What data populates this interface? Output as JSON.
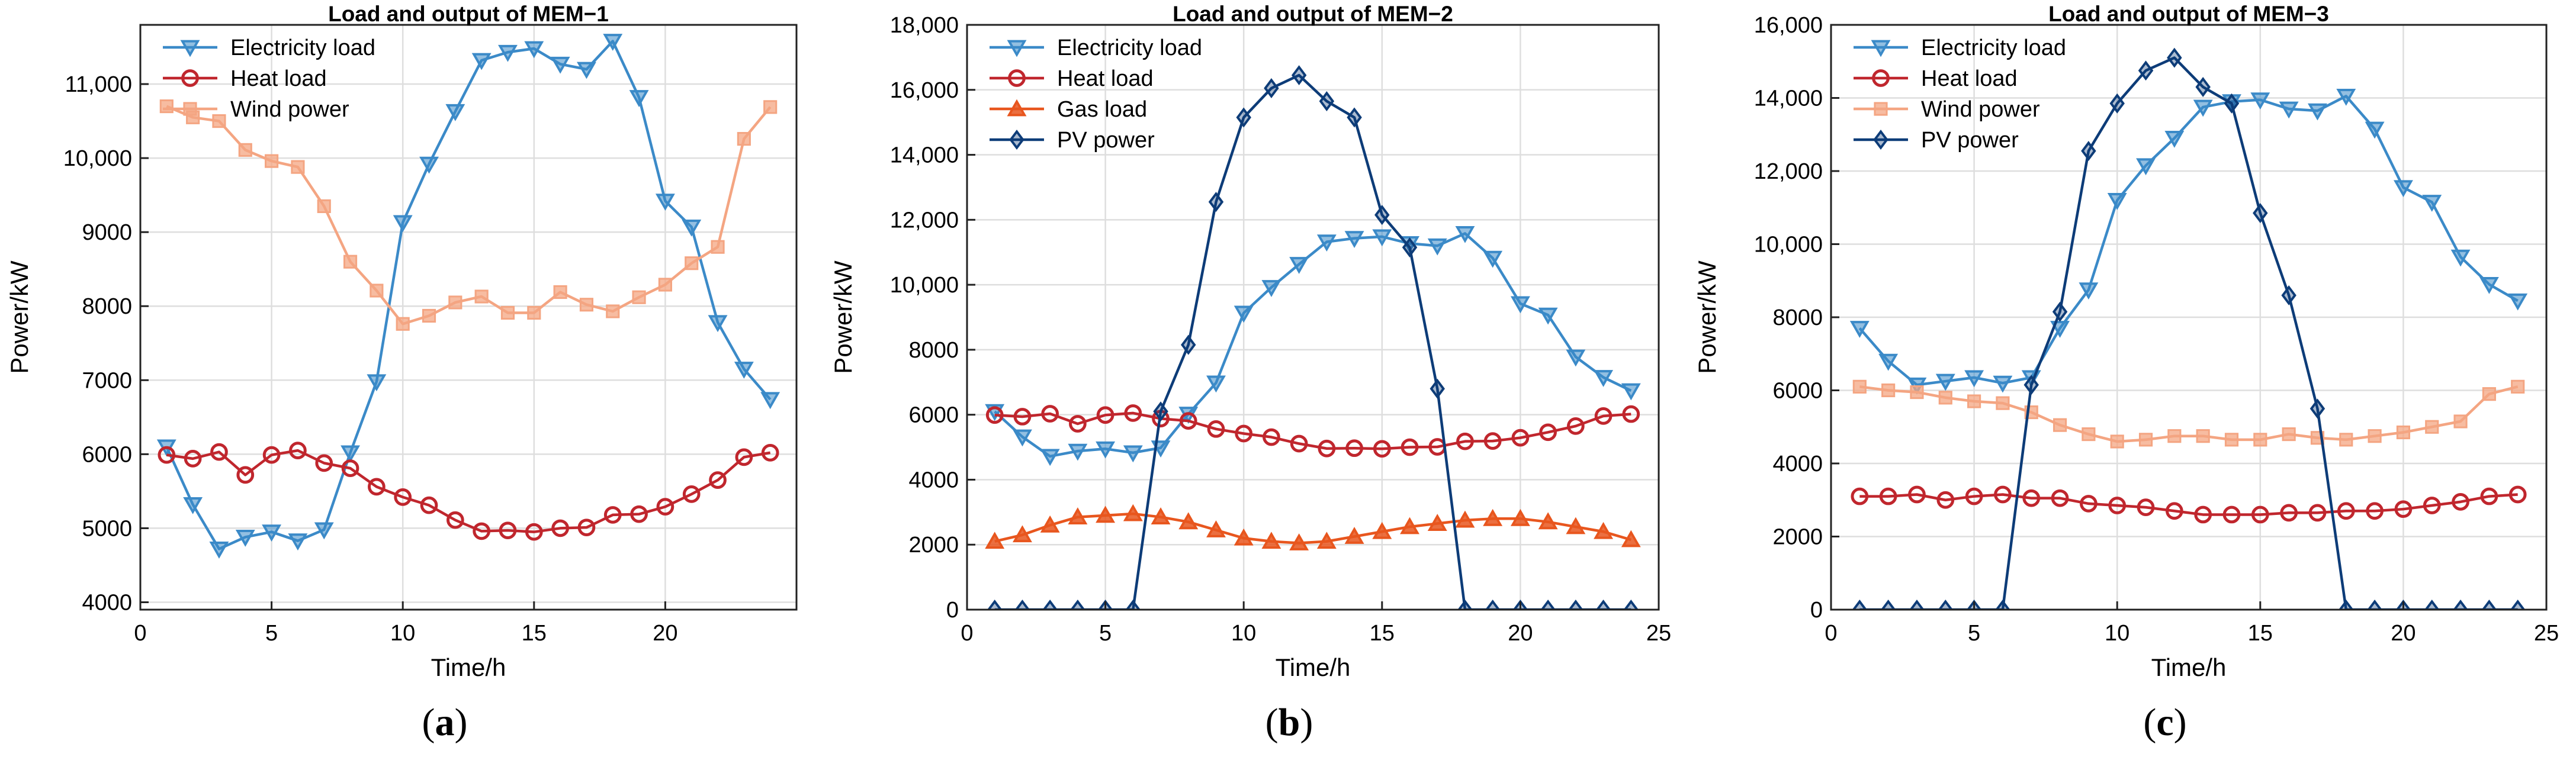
{
  "chart_data": [
    {
      "type": "line",
      "title": "Load and output of MEM−1",
      "xlabel": "Time/h",
      "ylabel": "Power/kW",
      "xlim": [
        0,
        25
      ],
      "ylim": [
        3900,
        11800
      ],
      "xticks": [
        0,
        5,
        10,
        15,
        20
      ],
      "xtick_labels": [
        "0",
        "5",
        "10",
        "15",
        "20"
      ],
      "yticks": [
        4000,
        5000,
        6000,
        7000,
        8000,
        9000,
        10000,
        11000
      ],
      "ytick_labels": [
        "4000",
        "5000",
        "6000",
        "7000",
        "8000",
        "9000",
        "10,000",
        "11,000"
      ],
      "grid": true,
      "legend": "top-left",
      "panel_label": {
        "open": "(",
        "letter": "a",
        "close": ")"
      },
      "x": [
        1,
        2,
        3,
        4,
        5,
        6,
        7,
        8,
        9,
        10,
        11,
        12,
        13,
        14,
        15,
        16,
        17,
        18,
        19,
        20,
        21,
        22,
        23,
        24
      ],
      "series": [
        {
          "name": "Electricity load",
          "color": "#3b8ac8",
          "marker": "triangle-down",
          "values": [
            6100,
            5320,
            4720,
            4880,
            4950,
            4830,
            4980,
            6020,
            6980,
            9130,
            9920,
            10630,
            11320,
            11430,
            11480,
            11270,
            11200,
            11580,
            10820,
            9420,
            9070,
            7780,
            7150,
            6740
          ]
        },
        {
          "name": "Heat load",
          "color": "#c0262d",
          "marker": "circle",
          "values": [
            5990,
            5940,
            6030,
            5720,
            5990,
            6050,
            5880,
            5810,
            5560,
            5420,
            5310,
            5110,
            4960,
            4970,
            4950,
            5000,
            5010,
            5180,
            5190,
            5290,
            5460,
            5650,
            5960,
            6020
          ]
        },
        {
          "name": "Wind power",
          "color": "#f4a582",
          "marker": "square",
          "values": [
            10700,
            10550,
            10500,
            10110,
            9960,
            9880,
            9350,
            8600,
            8210,
            7760,
            7870,
            8050,
            8130,
            7910,
            7910,
            8190,
            8020,
            7930,
            8120,
            8290,
            8580,
            8800,
            10260,
            10690
          ]
        }
      ]
    },
    {
      "type": "line",
      "title": "Load and output of MEM−2",
      "xlabel": "Time/h",
      "ylabel": "Power/kW",
      "xlim": [
        0,
        25
      ],
      "ylim": [
        0,
        18000
      ],
      "xticks": [
        0,
        5,
        10,
        15,
        20,
        25
      ],
      "xtick_labels": [
        "0",
        "5",
        "10",
        "15",
        "20",
        "25"
      ],
      "yticks": [
        0,
        2000,
        4000,
        6000,
        8000,
        10000,
        12000,
        14000,
        16000,
        18000
      ],
      "ytick_labels": [
        "0",
        "2000",
        "4000",
        "6000",
        "8000",
        "10,000",
        "12,000",
        "14,000",
        "16,000",
        "18,000"
      ],
      "grid": true,
      "legend": "top-left",
      "panel_label": {
        "open": "(",
        "letter": "b",
        "close": ")"
      },
      "x": [
        1,
        2,
        3,
        4,
        5,
        6,
        7,
        8,
        9,
        10,
        11,
        12,
        13,
        14,
        15,
        16,
        17,
        18,
        19,
        20,
        21,
        22,
        23,
        24
      ],
      "series": [
        {
          "name": "Electricity load",
          "color": "#3b8ac8",
          "marker": "triangle-down",
          "values": [
            6100,
            5320,
            4720,
            4880,
            4950,
            4830,
            4980,
            6020,
            6980,
            9130,
            9920,
            10630,
            11320,
            11430,
            11480,
            11270,
            11200,
            11580,
            10820,
            9420,
            9070,
            7780,
            7150,
            6740
          ]
        },
        {
          "name": "Heat load",
          "color": "#c0262d",
          "marker": "circle",
          "values": [
            5990,
            5940,
            6030,
            5720,
            5990,
            6050,
            5880,
            5810,
            5560,
            5420,
            5310,
            5110,
            4960,
            4970,
            4950,
            5000,
            5010,
            5180,
            5190,
            5290,
            5460,
            5650,
            5960,
            6020
          ]
        },
        {
          "name": "Gas load",
          "color": "#e8561e",
          "marker": "triangle-up",
          "values": [
            2100,
            2300,
            2600,
            2850,
            2900,
            2950,
            2850,
            2700,
            2450,
            2200,
            2100,
            2050,
            2100,
            2250,
            2400,
            2550,
            2650,
            2750,
            2800,
            2800,
            2700,
            2550,
            2400,
            2150
          ]
        },
        {
          "name": "PV power",
          "color": "#0d3c78",
          "marker": "diamond",
          "values": [
            0,
            0,
            0,
            0,
            0,
            0,
            6100,
            8150,
            12550,
            15150,
            16050,
            16450,
            15650,
            15150,
            12150,
            11150,
            6800,
            0,
            0,
            0,
            0,
            0,
            0,
            0
          ]
        }
      ]
    },
    {
      "type": "line",
      "title": "Load and output of MEM−3",
      "xlabel": "Time/h",
      "ylabel": "Power/kW",
      "xlim": [
        0,
        25
      ],
      "ylim": [
        0,
        16000
      ],
      "xticks": [
        0,
        5,
        10,
        15,
        20,
        25
      ],
      "xtick_labels": [
        "0",
        "5",
        "10",
        "15",
        "20",
        "25"
      ],
      "yticks": [
        0,
        2000,
        4000,
        6000,
        8000,
        10000,
        12000,
        14000,
        16000
      ],
      "ytick_labels": [
        "0",
        "2000",
        "4000",
        "6000",
        "8000",
        "10,000",
        "12,000",
        "14,000",
        "16,000"
      ],
      "grid": true,
      "legend": "top-left",
      "panel_label": {
        "open": "(",
        "letter": "c",
        "close": ")"
      },
      "x": [
        1,
        2,
        3,
        4,
        5,
        6,
        7,
        8,
        9,
        10,
        11,
        12,
        13,
        14,
        15,
        16,
        17,
        18,
        19,
        20,
        21,
        22,
        23,
        24
      ],
      "series": [
        {
          "name": "Electricity load",
          "color": "#3b8ac8",
          "marker": "triangle-down",
          "values": [
            7700,
            6800,
            6150,
            6250,
            6350,
            6200,
            6350,
            7700,
            8750,
            11200,
            12150,
            12900,
            13750,
            13900,
            13950,
            13700,
            13650,
            14050,
            13150,
            11550,
            11150,
            9650,
            8900,
            8450
          ]
        },
        {
          "name": "Heat load",
          "color": "#c0262d",
          "marker": "circle",
          "values": [
            3100,
            3100,
            3150,
            3000,
            3100,
            3150,
            3050,
            3050,
            2900,
            2850,
            2800,
            2700,
            2600,
            2600,
            2600,
            2650,
            2650,
            2700,
            2700,
            2750,
            2850,
            2950,
            3100,
            3150
          ]
        },
        {
          "name": "Wind power",
          "color": "#f4a582",
          "marker": "square",
          "values": [
            6100,
            6000,
            5950,
            5800,
            5700,
            5650,
            5400,
            5050,
            4800,
            4600,
            4650,
            4750,
            4750,
            4650,
            4650,
            4800,
            4700,
            4650,
            4750,
            4850,
            5000,
            5150,
            5900,
            6100
          ]
        },
        {
          "name": "PV power",
          "color": "#0d3c78",
          "marker": "diamond",
          "values": [
            0,
            0,
            0,
            0,
            0,
            0,
            6150,
            8150,
            12550,
            13850,
            14750,
            15100,
            14300,
            13850,
            10850,
            8600,
            5500,
            0,
            0,
            0,
            0,
            0,
            0,
            0
          ]
        }
      ]
    }
  ]
}
